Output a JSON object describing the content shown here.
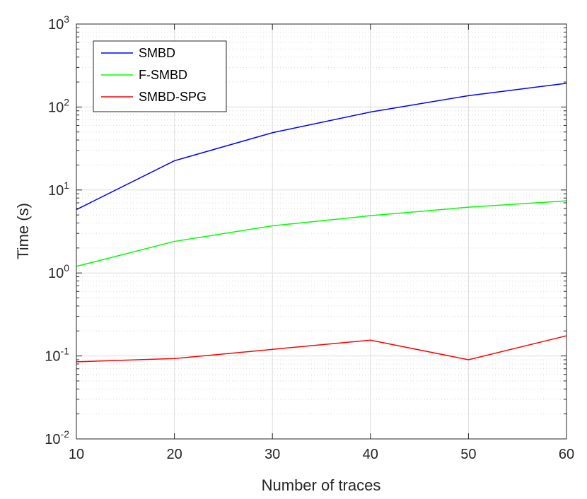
{
  "chart_data": {
    "type": "line",
    "x": [
      10,
      20,
      30,
      40,
      50,
      60
    ],
    "xlabel": "Number of traces",
    "ylabel": "Time (s)",
    "xlim": [
      10,
      60
    ],
    "ylim": [
      0.01,
      1000
    ],
    "yscale": "log",
    "grid": true,
    "minor_grid": true,
    "legend_position": "top-left",
    "x_ticks": [
      "10",
      "20",
      "30",
      "40",
      "50",
      "60"
    ],
    "y_ticks": [
      {
        "base": "10",
        "exp": "-2",
        "value": 0.01
      },
      {
        "base": "10",
        "exp": "-1",
        "value": 0.1
      },
      {
        "base": "10",
        "exp": "0",
        "value": 1
      },
      {
        "base": "10",
        "exp": "1",
        "value": 10
      },
      {
        "base": "10",
        "exp": "2",
        "value": 100
      },
      {
        "base": "10",
        "exp": "3",
        "value": 1000
      }
    ],
    "series": [
      {
        "name": "SMBD",
        "color": "#0000ff",
        "values": [
          5.8,
          22.5,
          49,
          87,
          137,
          193
        ]
      },
      {
        "name": "F-SMBD",
        "color": "#00ff00",
        "values": [
          1.2,
          2.4,
          3.7,
          4.9,
          6.2,
          7.4
        ]
      },
      {
        "name": "SMBD-SPG",
        "color": "#ff0000",
        "values": [
          0.085,
          0.093,
          0.12,
          0.155,
          0.09,
          0.175
        ]
      }
    ]
  }
}
